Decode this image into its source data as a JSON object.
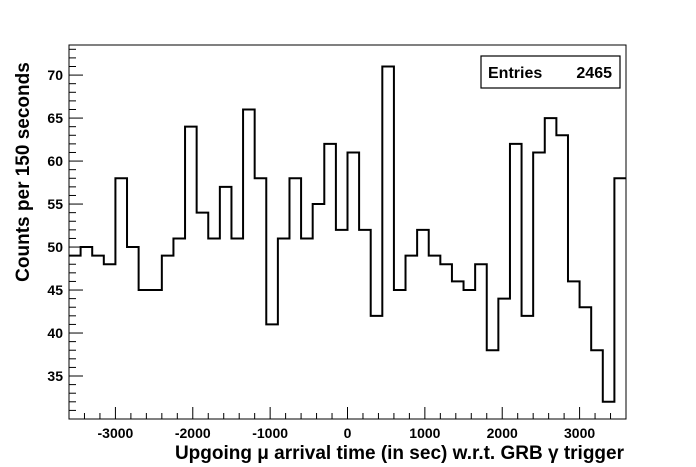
{
  "chart_data": {
    "type": "histogram",
    "xlabel": "Upgoing μ arrival time (in sec) w.r.t. GRB γ trigger",
    "ylabel": "Counts per 150 seconds",
    "xlim": [
      -3600,
      3600
    ],
    "ylim": [
      30,
      73.5
    ],
    "bin_width": 150,
    "x_ticks": [
      -3000,
      -2000,
      -1000,
      0,
      1000,
      2000,
      3000
    ],
    "x_tick_labels": [
      "-3000",
      "-2000",
      "-1000",
      "0",
      "1000",
      "2000",
      "3000"
    ],
    "y_ticks": [
      35,
      40,
      45,
      50,
      55,
      60,
      65,
      70
    ],
    "y_tick_labels": [
      "35",
      "40",
      "45",
      "50",
      "55",
      "60",
      "65",
      "70"
    ],
    "bin_edges_start": -3600,
    "values": [
      49,
      50,
      49,
      48,
      58,
      50,
      45,
      45,
      49,
      51,
      64,
      54,
      51,
      57,
      51,
      66,
      58,
      41,
      51,
      58,
      51,
      55,
      62,
      52,
      61,
      52,
      42,
      71,
      45,
      49,
      52,
      49,
      48,
      46,
      45,
      48,
      38,
      44,
      62,
      42,
      61,
      65,
      63,
      46,
      43,
      38,
      32,
      58
    ],
    "stats_box": {
      "label": "Entries",
      "value": "2465"
    },
    "grid": false,
    "legend": "none"
  }
}
